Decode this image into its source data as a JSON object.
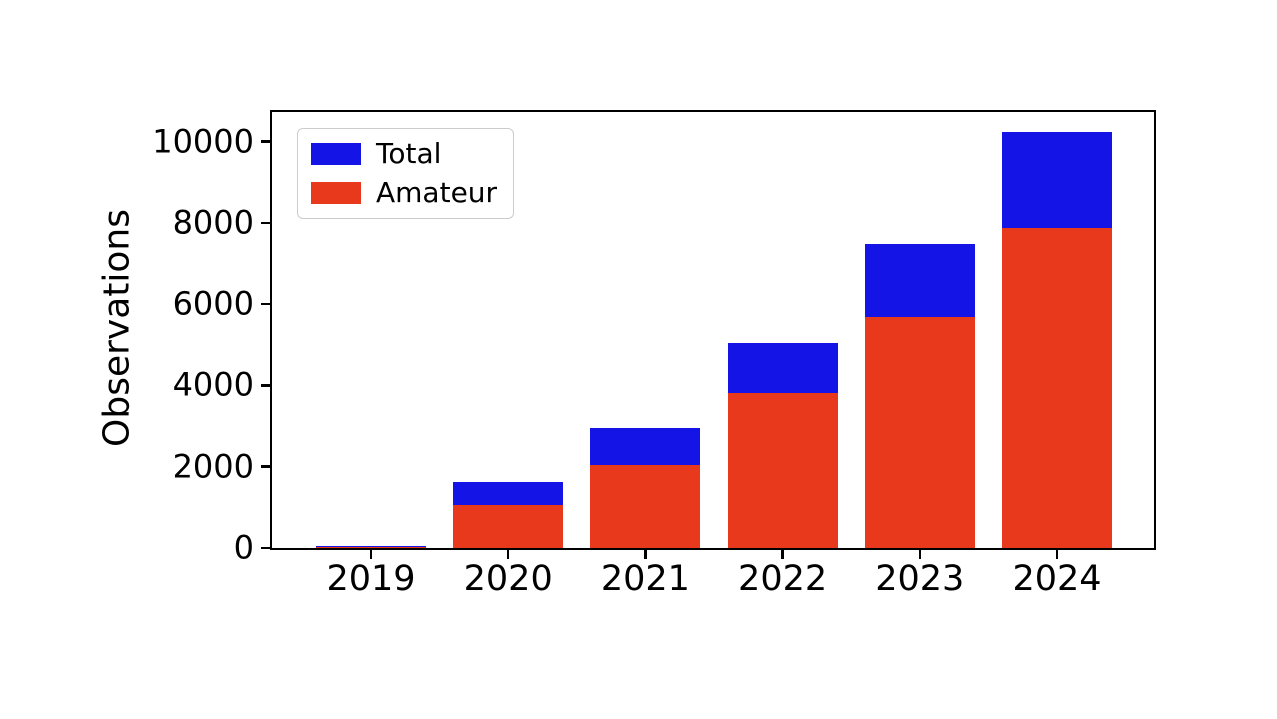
{
  "chart_data": {
    "type": "bar",
    "overlay": true,
    "title": "",
    "xlabel": "",
    "ylabel": "Observations",
    "categories": [
      "2019",
      "2020",
      "2021",
      "2022",
      "2023",
      "2024"
    ],
    "series": [
      {
        "name": "Total",
        "color": "#1414e6",
        "values": [
          60,
          1620,
          2950,
          5050,
          7480,
          10230
        ]
      },
      {
        "name": "Amateur",
        "color": "#e8391c",
        "values": [
          20,
          1050,
          2040,
          3810,
          5680,
          7870
        ]
      }
    ],
    "ylim": [
      0,
      10726
    ],
    "yticks": [
      0,
      2000,
      4000,
      6000,
      8000,
      10000
    ],
    "legend": {
      "position": "upper-left"
    },
    "grid": false,
    "background": "#ffffff"
  }
}
